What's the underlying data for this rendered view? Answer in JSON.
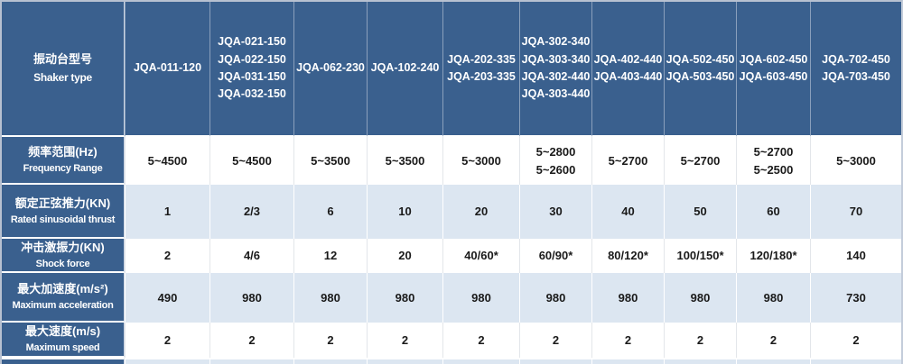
{
  "table_title": "Shaker specifications table",
  "colors": {
    "header_blue": "#3a608e",
    "row_light_blue": "#dce6f1",
    "row_white": "#ffffff",
    "header_text": "#ffffff",
    "data_text": "#1a1a1a",
    "outer_border": "#b7c1d1"
  },
  "header": {
    "label_zh": "振动台型号",
    "label_en": "Shaker type",
    "columns": [
      "JQA-011-120",
      "JQA-021-150\nJQA-022-150\nJQA-031-150\nJQA-032-150",
      "JQA-062-230",
      "JQA-102-240",
      "JQA-202-335\nJQA-203-335",
      "JQA-302-340\nJQA-303-340\nJQA-302-440\nJQA-303-440",
      "JQA-402-440\nJQA-403-440",
      "JQA-502-450\nJQA-503-450",
      "JQA-602-450\nJQA-603-450",
      "JQA-702-450\nJQA-703-450"
    ]
  },
  "rows": [
    {
      "label_zh": "频率范围(Hz)",
      "label_en": "Frequency Range",
      "cells": [
        "5~4500",
        "5~4500",
        "5~3500",
        "5~3500",
        "5~3000",
        "5~2800\n5~2600",
        "5~2700",
        "5~2700",
        "5~2700\n5~2500",
        "5~3000"
      ]
    },
    {
      "label_zh": "额定正弦推力(KN)",
      "label_en": "Rated sinusoidal thrust",
      "cells": [
        "1",
        "2/3",
        "6",
        "10",
        "20",
        "30",
        "40",
        "50",
        "60",
        "70"
      ]
    },
    {
      "label_zh": "冲击激振力(KN)",
      "label_en": "Shock force",
      "cells": [
        "2",
        "4/6",
        "12",
        "20",
        "40/60*",
        "60/90*",
        "80/120*",
        "100/150*",
        "120/180*",
        "140"
      ]
    },
    {
      "label_zh": "最大加速度(m/s²)",
      "label_en": "Maximum acceleration",
      "cells": [
        "490",
        "980",
        "980",
        "980",
        "980",
        "980",
        "980",
        "980",
        "980",
        "730"
      ]
    },
    {
      "label_zh": "最大速度(m/s)",
      "label_en": "Maximum speed",
      "cells": [
        "2",
        "2",
        "2",
        "2",
        "2",
        "2",
        "2",
        "2",
        "2",
        "2"
      ]
    }
  ]
}
